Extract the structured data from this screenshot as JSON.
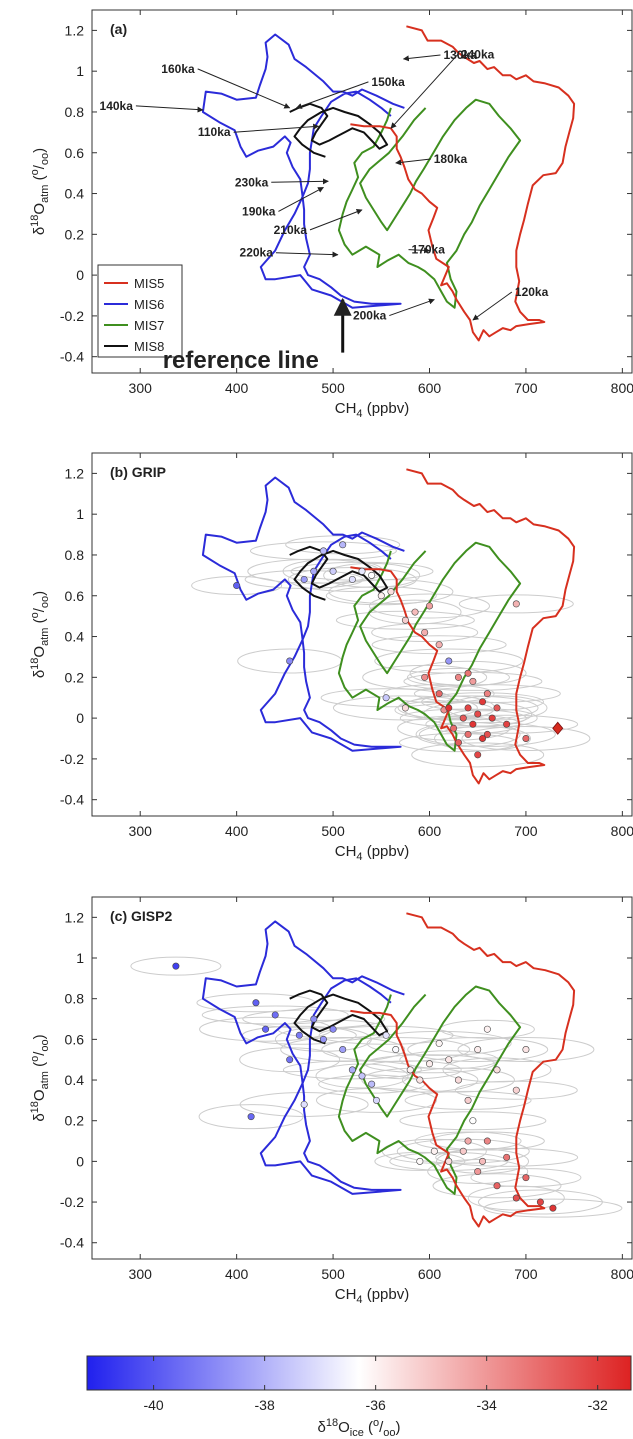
{
  "chart_data": [
    {
      "type": "line",
      "panel": "(a)",
      "xlabel": "CH4 (ppbv)",
      "ylabel": "δ18Oatm (o/oo)",
      "xlim": [
        250,
        810
      ],
      "ylim": [
        -0.48,
        1.3
      ],
      "xticks": [
        300,
        400,
        500,
        600,
        700,
        800
      ],
      "yticks": [
        -0.4,
        -0.2,
        0,
        0.2,
        0.4,
        0.6,
        0.8,
        1,
        1.2
      ],
      "legend": [
        "MIS5",
        "MIS6",
        "MIS7",
        "MIS8"
      ],
      "legend_position": "bottom-left",
      "annotations": [
        {
          "text": "130ka",
          "x": 573,
          "y": 1.06
        },
        {
          "text": "160ka",
          "x": 455,
          "y": 0.82
        },
        {
          "text": "150ka",
          "x": 462,
          "y": 0.82
        },
        {
          "text": "240ka",
          "x": 560,
          "y": 0.72
        },
        {
          "text": "140ka",
          "x": 365,
          "y": 0.81
        },
        {
          "text": "110ka",
          "x": 485,
          "y": 0.73
        },
        {
          "text": "180ka",
          "x": 565,
          "y": 0.55
        },
        {
          "text": "230ka",
          "x": 495,
          "y": 0.46
        },
        {
          "text": "190ka",
          "x": 490,
          "y": 0.43
        },
        {
          "text": "210ka",
          "x": 530,
          "y": 0.32
        },
        {
          "text": "170ka",
          "x": 600,
          "y": 0.12
        },
        {
          "text": "220ka",
          "x": 505,
          "y": 0.1
        },
        {
          "text": "120ka",
          "x": 645,
          "y": -0.22
        },
        {
          "text": "200ka",
          "x": 605,
          "y": -0.12
        }
      ],
      "reference_label": "reference line",
      "reference_x": 510
    },
    {
      "type": "scatter",
      "panel": "(b) GRIP",
      "xlabel": "CH4 (ppbv)",
      "ylabel": "δ18Oatm (o/oo)",
      "xlim": [
        250,
        810
      ],
      "ylim": [
        -0.48,
        1.3
      ],
      "xticks": [
        300,
        400,
        500,
        600,
        700,
        800
      ],
      "yticks": [
        -0.4,
        -0.2,
        0,
        0.2,
        0.4,
        0.6,
        0.8,
        1,
        1.2
      ],
      "points": [
        [
          400,
          0.65,
          -39.8
        ],
        [
          455,
          0.28,
          -38.9
        ],
        [
          470,
          0.68,
          -38.5
        ],
        [
          480,
          0.72,
          -38.2
        ],
        [
          490,
          0.82,
          -37.8
        ],
        [
          500,
          0.72,
          -37.4
        ],
        [
          510,
          0.85,
          -37.9
        ],
        [
          520,
          0.68,
          -37.0
        ],
        [
          530,
          0.72,
          -36.8
        ],
        [
          540,
          0.7,
          -36.3
        ],
        [
          550,
          0.6,
          -35.9
        ],
        [
          560,
          0.62,
          -35.6
        ],
        [
          575,
          0.48,
          -35.2
        ],
        [
          585,
          0.52,
          -34.8
        ],
        [
          595,
          0.42,
          -34.5
        ],
        [
          600,
          0.55,
          -34.2
        ],
        [
          610,
          0.36,
          -34.5
        ],
        [
          620,
          0.28,
          -38.6
        ],
        [
          630,
          0.2,
          -33.6
        ],
        [
          640,
          0.22,
          -33.2
        ],
        [
          555,
          0.1,
          -37.5
        ],
        [
          575,
          0.05,
          -35.5
        ],
        [
          615,
          0.04,
          -33.8
        ],
        [
          625,
          -0.05,
          -33.0
        ],
        [
          635,
          0.0,
          -32.6
        ],
        [
          640,
          0.05,
          -32.2
        ],
        [
          645,
          -0.03,
          -31.8
        ],
        [
          650,
          0.02,
          -32.3
        ],
        [
          655,
          0.08,
          -31.9
        ],
        [
          660,
          -0.08,
          -32.4
        ],
        [
          665,
          0.0,
          -32.0
        ],
        [
          640,
          -0.08,
          -33.1
        ],
        [
          630,
          -0.12,
          -32.7
        ],
        [
          650,
          -0.18,
          -32.2
        ],
        [
          660,
          0.12,
          -33.5
        ],
        [
          670,
          0.05,
          -32.6
        ],
        [
          690,
          0.56,
          -34.6
        ],
        [
          700,
          -0.1,
          -32.9
        ],
        [
          680,
          -0.03,
          -32.1
        ],
        [
          655,
          -0.1,
          -31.8
        ],
        [
          610,
          0.12,
          -32.9
        ],
        [
          595,
          0.2,
          -33.7
        ],
        [
          645,
          0.18,
          -34.1
        ],
        [
          620,
          0.05,
          -31.7
        ]
      ],
      "diamond_point": [
        733,
        -0.05
      ]
    },
    {
      "type": "scatter",
      "panel": "(c) GISP2",
      "xlabel": "CH4 (ppbv)",
      "ylabel": "δ18Oatm (o/oo)",
      "xlim": [
        250,
        810
      ],
      "ylim": [
        -0.48,
        1.3
      ],
      "xticks": [
        300,
        400,
        500,
        600,
        700,
        800
      ],
      "yticks": [
        -0.4,
        -0.2,
        0,
        0.2,
        0.4,
        0.6,
        0.8,
        1,
        1.2
      ],
      "points": [
        [
          337,
          0.96,
          -40.5
        ],
        [
          415,
          0.22,
          -39.6
        ],
        [
          420,
          0.78,
          -39.8
        ],
        [
          430,
          0.65,
          -39.7
        ],
        [
          440,
          0.72,
          -39.5
        ],
        [
          455,
          0.5,
          -39.4
        ],
        [
          465,
          0.62,
          -39.2
        ],
        [
          470,
          0.28,
          -37.0
        ],
        [
          480,
          0.7,
          -38.8
        ],
        [
          490,
          0.6,
          -38.6
        ],
        [
          500,
          0.65,
          -38.9
        ],
        [
          510,
          0.55,
          -38.4
        ],
        [
          520,
          0.45,
          -38.1
        ],
        [
          530,
          0.42,
          -37.6
        ],
        [
          540,
          0.38,
          -37.8
        ],
        [
          545,
          0.3,
          -37.2
        ],
        [
          555,
          0.62,
          -36.9
        ],
        [
          565,
          0.55,
          -36.4
        ],
        [
          580,
          0.45,
          -36.0
        ],
        [
          590,
          0.4,
          -35.7
        ],
        [
          600,
          0.48,
          -35.9
        ],
        [
          610,
          0.58,
          -36.1
        ],
        [
          620,
          0.5,
          -35.8
        ],
        [
          630,
          0.4,
          -35.5
        ],
        [
          640,
          0.3,
          -35.2
        ],
        [
          650,
          0.55,
          -35.9
        ],
        [
          660,
          0.65,
          -36.0
        ],
        [
          670,
          0.45,
          -35.6
        ],
        [
          690,
          0.35,
          -35.3
        ],
        [
          700,
          0.55,
          -35.7
        ],
        [
          590,
          0.0,
          -36.2
        ],
        [
          605,
          0.05,
          -36.0
        ],
        [
          620,
          0.0,
          -35.6
        ],
        [
          635,
          0.05,
          -35.1
        ],
        [
          645,
          0.2,
          -36.3
        ],
        [
          650,
          -0.05,
          -34.0
        ],
        [
          660,
          0.1,
          -33.6
        ],
        [
          670,
          -0.12,
          -32.8
        ],
        [
          680,
          0.02,
          -33.2
        ],
        [
          690,
          -0.18,
          -32.4
        ],
        [
          700,
          -0.08,
          -32.9
        ],
        [
          715,
          -0.2,
          -32.2
        ],
        [
          728,
          -0.23,
          -31.8
        ],
        [
          655,
          0.0,
          -34.8
        ],
        [
          640,
          0.1,
          -34.4
        ]
      ]
    }
  ],
  "paths": {
    "MIS5": [
      [
        576,
        1.22
      ],
      [
        592,
        1.2
      ],
      [
        598,
        1.15
      ],
      [
        612,
        1.15
      ],
      [
        624,
        1.12
      ],
      [
        630,
        1.09
      ],
      [
        636,
        1.07
      ],
      [
        646,
        1.04
      ],
      [
        652,
        1.05
      ],
      [
        660,
        1.01
      ],
      [
        667,
        1.02
      ],
      [
        676,
        0.98
      ],
      [
        684,
        0.98
      ],
      [
        690,
        0.96
      ],
      [
        700,
        0.98
      ],
      [
        708,
        0.95
      ],
      [
        720,
        0.94
      ],
      [
        734,
        0.92
      ],
      [
        744,
        0.88
      ],
      [
        750,
        0.84
      ],
      [
        749,
        0.77
      ],
      [
        745,
        0.7
      ],
      [
        741,
        0.63
      ],
      [
        738,
        0.55
      ],
      [
        731,
        0.5
      ],
      [
        718,
        0.49
      ],
      [
        707,
        0.44
      ],
      [
        702,
        0.35
      ],
      [
        698,
        0.27
      ],
      [
        694,
        0.2
      ],
      [
        690,
        0.12
      ],
      [
        690,
        0.04
      ],
      [
        693,
        -0.03
      ],
      [
        691,
        -0.08
      ],
      [
        689,
        -0.13
      ],
      [
        694,
        -0.18
      ],
      [
        702,
        -0.22
      ],
      [
        714,
        -0.22
      ],
      [
        719,
        -0.23
      ],
      [
        703,
        -0.24
      ],
      [
        690,
        -0.25
      ],
      [
        684,
        -0.27
      ],
      [
        676,
        -0.26
      ],
      [
        669,
        -0.28
      ],
      [
        662,
        -0.3
      ],
      [
        656,
        -0.27
      ],
      [
        651,
        -0.32
      ],
      [
        645,
        -0.28
      ],
      [
        642,
        -0.22
      ],
      [
        636,
        -0.18
      ],
      [
        628,
        -0.12
      ],
      [
        624,
        -0.08
      ],
      [
        618,
        -0.04
      ],
      [
        612,
        -0.05
      ],
      [
        620,
        0.04
      ],
      [
        607,
        0.08
      ],
      [
        603,
        0.14
      ],
      [
        599,
        0.22
      ],
      [
        604,
        0.28
      ],
      [
        608,
        0.33
      ],
      [
        600,
        0.36
      ],
      [
        592,
        0.4
      ],
      [
        585,
        0.42
      ],
      [
        578,
        0.47
      ],
      [
        574,
        0.53
      ],
      [
        570,
        0.58
      ],
      [
        566,
        0.62
      ],
      [
        566,
        0.68
      ],
      [
        560,
        0.72
      ],
      [
        548,
        0.73
      ],
      [
        532,
        0.73
      ],
      [
        518,
        0.74
      ]
    ],
    "MIS6": [
      [
        574,
        0.82
      ],
      [
        562,
        0.84
      ],
      [
        545,
        0.88
      ],
      [
        530,
        0.91
      ],
      [
        520,
        0.88
      ],
      [
        510,
        0.9
      ],
      [
        500,
        0.9
      ],
      [
        490,
        0.95
      ],
      [
        472,
        1.02
      ],
      [
        460,
        1.06
      ],
      [
        454,
        1.13
      ],
      [
        440,
        1.18
      ],
      [
        430,
        1.14
      ],
      [
        432,
        1.07
      ],
      [
        430,
        1.01
      ],
      [
        424,
        0.93
      ],
      [
        420,
        0.87
      ],
      [
        400,
        0.86
      ],
      [
        384,
        0.89
      ],
      [
        368,
        0.9
      ],
      [
        365,
        0.8
      ],
      [
        382,
        0.75
      ],
      [
        398,
        0.71
      ],
      [
        404,
        0.63
      ],
      [
        410,
        0.58
      ],
      [
        422,
        0.61
      ],
      [
        438,
        0.63
      ],
      [
        450,
        0.68
      ],
      [
        456,
        0.65
      ],
      [
        452,
        0.6
      ],
      [
        458,
        0.53
      ],
      [
        466,
        0.47
      ],
      [
        468,
        0.4
      ],
      [
        470,
        0.32
      ],
      [
        470,
        0.25
      ],
      [
        472,
        0.18
      ],
      [
        476,
        0.1
      ],
      [
        470,
        0.04
      ],
      [
        474,
        0.0
      ],
      [
        486,
        -0.02
      ],
      [
        498,
        -0.06
      ],
      [
        508,
        -0.1
      ],
      [
        522,
        -0.13
      ],
      [
        540,
        -0.14
      ],
      [
        570,
        -0.14
      ],
      [
        520,
        -0.16
      ],
      [
        498,
        -0.1
      ],
      [
        478,
        -0.07
      ],
      [
        466,
        0.0
      ],
      [
        440,
        -0.02
      ],
      [
        430,
        -0.02
      ],
      [
        425,
        0.04
      ],
      [
        440,
        0.12
      ],
      [
        450,
        0.22
      ],
      [
        460,
        0.3
      ],
      [
        468,
        0.38
      ],
      [
        474,
        0.45
      ],
      [
        476,
        0.52
      ],
      [
        476,
        0.6
      ],
      [
        478,
        0.66
      ],
      [
        480,
        0.72
      ],
      [
        488,
        0.78
      ],
      [
        498,
        0.85
      ],
      [
        512,
        0.89
      ],
      [
        524,
        0.9
      ],
      [
        538,
        0.86
      ],
      [
        550,
        0.82
      ],
      [
        560,
        0.78
      ]
    ],
    "MIS7": [
      [
        560,
        0.82
      ],
      [
        556,
        0.76
      ],
      [
        550,
        0.7
      ],
      [
        542,
        0.63
      ],
      [
        530,
        0.6
      ],
      [
        522,
        0.55
      ],
      [
        526,
        0.48
      ],
      [
        520,
        0.42
      ],
      [
        514,
        0.36
      ],
      [
        510,
        0.3
      ],
      [
        506,
        0.22
      ],
      [
        512,
        0.15
      ],
      [
        520,
        0.1
      ],
      [
        534,
        0.14
      ],
      [
        548,
        0.1
      ],
      [
        546,
        0.04
      ],
      [
        556,
        0.07
      ],
      [
        568,
        0.1
      ],
      [
        578,
        0.06
      ],
      [
        588,
        0.04
      ],
      [
        595,
        0.02
      ],
      [
        605,
        -0.02
      ],
      [
        612,
        -0.08
      ],
      [
        618,
        -0.13
      ],
      [
        626,
        -0.16
      ],
      [
        628,
        -0.08
      ],
      [
        622,
        -0.02
      ],
      [
        618,
        0.06
      ],
      [
        628,
        0.12
      ],
      [
        636,
        0.2
      ],
      [
        644,
        0.26
      ],
      [
        652,
        0.34
      ],
      [
        662,
        0.42
      ],
      [
        672,
        0.5
      ],
      [
        682,
        0.58
      ],
      [
        694,
        0.66
      ],
      [
        684,
        0.72
      ],
      [
        672,
        0.78
      ],
      [
        662,
        0.84
      ],
      [
        648,
        0.86
      ],
      [
        638,
        0.82
      ],
      [
        626,
        0.76
      ],
      [
        614,
        0.68
      ],
      [
        604,
        0.6
      ],
      [
        594,
        0.52
      ],
      [
        586,
        0.46
      ],
      [
        580,
        0.4
      ],
      [
        572,
        0.34
      ],
      [
        564,
        0.28
      ],
      [
        556,
        0.22
      ],
      [
        550,
        0.26
      ],
      [
        542,
        0.32
      ],
      [
        534,
        0.38
      ],
      [
        528,
        0.45
      ],
      [
        538,
        0.52
      ],
      [
        548,
        0.56
      ],
      [
        558,
        0.6
      ],
      [
        572,
        0.68
      ],
      [
        584,
        0.76
      ],
      [
        596,
        0.82
      ]
    ],
    "MIS8": [
      [
        455,
        0.8
      ],
      [
        464,
        0.82
      ],
      [
        476,
        0.84
      ],
      [
        488,
        0.82
      ],
      [
        494,
        0.78
      ],
      [
        488,
        0.74
      ],
      [
        482,
        0.7
      ],
      [
        478,
        0.66
      ],
      [
        486,
        0.64
      ],
      [
        496,
        0.66
      ],
      [
        504,
        0.68
      ],
      [
        512,
        0.7
      ],
      [
        520,
        0.72
      ],
      [
        532,
        0.7
      ],
      [
        540,
        0.66
      ],
      [
        548,
        0.62
      ],
      [
        556,
        0.64
      ],
      [
        548,
        0.7
      ],
      [
        538,
        0.74
      ],
      [
        526,
        0.78
      ],
      [
        512,
        0.8
      ],
      [
        500,
        0.82
      ],
      [
        488,
        0.8
      ],
      [
        474,
        0.76
      ],
      [
        466,
        0.72
      ],
      [
        460,
        0.68
      ],
      [
        468,
        0.64
      ],
      [
        480,
        0.6
      ],
      [
        492,
        0.58
      ]
    ]
  },
  "colors": {
    "MIS5": "#d7301f",
    "MIS6": "#2b2bd9",
    "MIS7": "#3f8f1f",
    "MIS8": "#111111",
    "ellipse": "#cccccc"
  },
  "colorbar": {
    "min": -41.2,
    "max": -31.4,
    "ticks": [
      -40,
      -38,
      -36,
      -34,
      -32
    ],
    "label": "δ18Oice (o/oo)",
    "cmap_low": "#2020ee",
    "cmap_mid": "#ffffff",
    "cmap_high": "#dd2222"
  }
}
